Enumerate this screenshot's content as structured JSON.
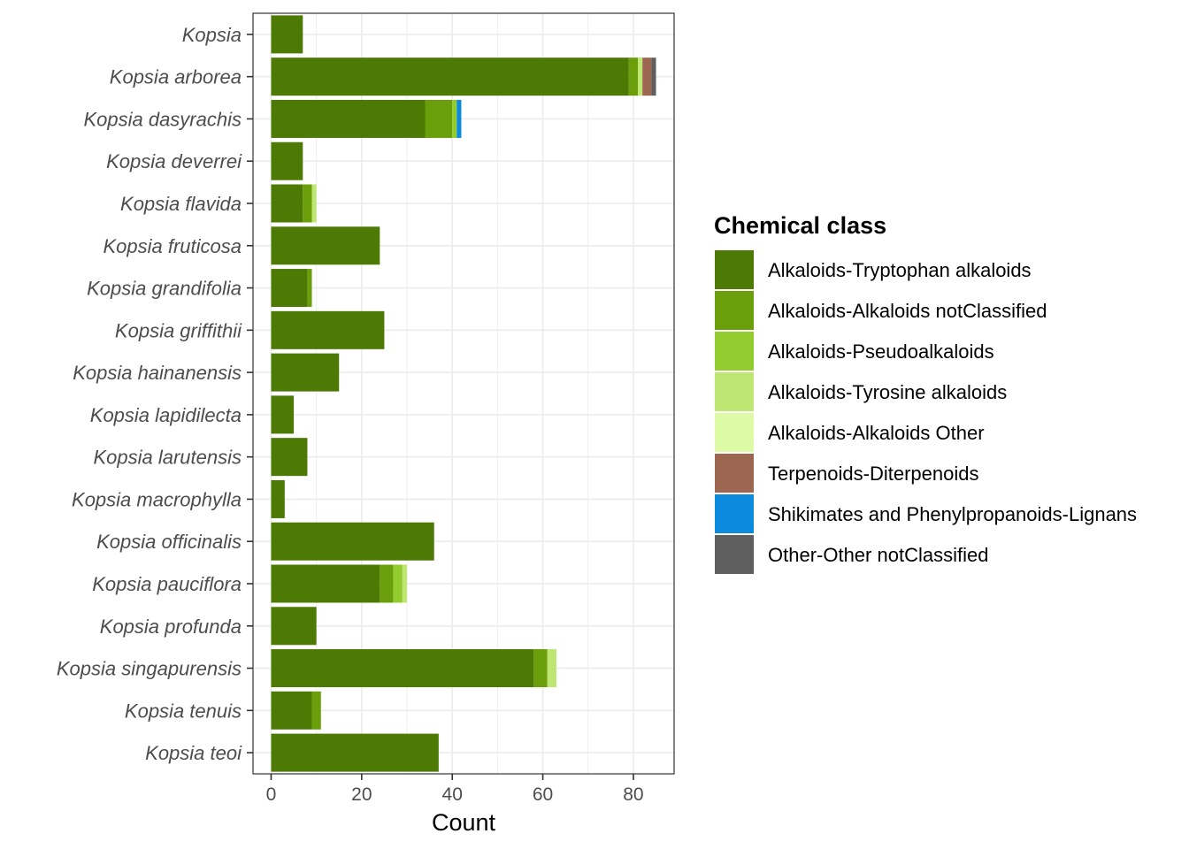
{
  "chart_data": {
    "type": "bar",
    "orientation": "horizontal",
    "stacked": true,
    "xlabel": "Count",
    "ylabel": "",
    "xlim": [
      -4,
      89
    ],
    "xticks": [
      0,
      20,
      40,
      60,
      80
    ],
    "grid": true,
    "legend_title": "Chemical class",
    "legend_position": "right",
    "categories": [
      "Kopsia",
      "Kopsia arborea",
      "Kopsia dasyrachis",
      "Kopsia deverrei",
      "Kopsia flavida",
      "Kopsia fruticosa",
      "Kopsia grandifolia",
      "Kopsia griffithii",
      "Kopsia hainanensis",
      "Kopsia lapidilecta",
      "Kopsia larutensis",
      "Kopsia macrophylla",
      "Kopsia officinalis",
      "Kopsia pauciflora",
      "Kopsia profunda",
      "Kopsia singapurensis",
      "Kopsia tenuis",
      "Kopsia teoi"
    ],
    "series": [
      {
        "name": "Alkaloids-Tryptophan alkaloids",
        "color": "#4d7a05",
        "values": [
          7,
          79,
          34,
          7,
          7,
          24,
          8,
          25,
          15,
          5,
          8,
          3,
          36,
          24,
          10,
          58,
          9,
          37
        ]
      },
      {
        "name": "Alkaloids-Alkaloids notClassified",
        "color": "#6a9e0a",
        "values": [
          0,
          2,
          6,
          0,
          2,
          0,
          1,
          0,
          0,
          0,
          0,
          0,
          0,
          3,
          0,
          3,
          2,
          0
        ]
      },
      {
        "name": "Alkaloids-Pseudoalkaloids",
        "color": "#93cc2e",
        "values": [
          0,
          0,
          1,
          0,
          0,
          0,
          0,
          0,
          0,
          0,
          0,
          0,
          0,
          2,
          0,
          0,
          0,
          0
        ]
      },
      {
        "name": "Alkaloids-Tyrosine alkaloids",
        "color": "#bde672",
        "values": [
          0,
          1,
          0,
          0,
          1,
          0,
          0,
          0,
          0,
          0,
          0,
          0,
          0,
          1,
          0,
          2,
          0,
          0
        ]
      },
      {
        "name": "Alkaloids-Alkaloids Other",
        "color": "#ddfba5",
        "values": [
          0,
          0,
          0,
          0,
          0,
          0,
          0,
          0,
          0,
          0,
          0,
          0,
          0,
          0,
          0,
          0,
          0,
          0
        ]
      },
      {
        "name": "Terpenoids-Diterpenoids",
        "color": "#9d6650",
        "values": [
          0,
          2,
          0,
          0,
          0,
          0,
          0,
          0,
          0,
          0,
          0,
          0,
          0,
          0,
          0,
          0,
          0,
          0
        ]
      },
      {
        "name": "Shikimates and Phenylpropanoids-Lignans",
        "color": "#0b8ade",
        "values": [
          0,
          0,
          1,
          0,
          0,
          0,
          0,
          0,
          0,
          0,
          0,
          0,
          0,
          0,
          0,
          0,
          0,
          0
        ]
      },
      {
        "name": "Other-Other notClassified",
        "color": "#5f5f5f",
        "values": [
          0,
          1,
          0,
          0,
          0,
          0,
          0,
          0,
          0,
          0,
          0,
          0,
          0,
          0,
          0,
          0,
          0,
          0
        ]
      }
    ]
  }
}
